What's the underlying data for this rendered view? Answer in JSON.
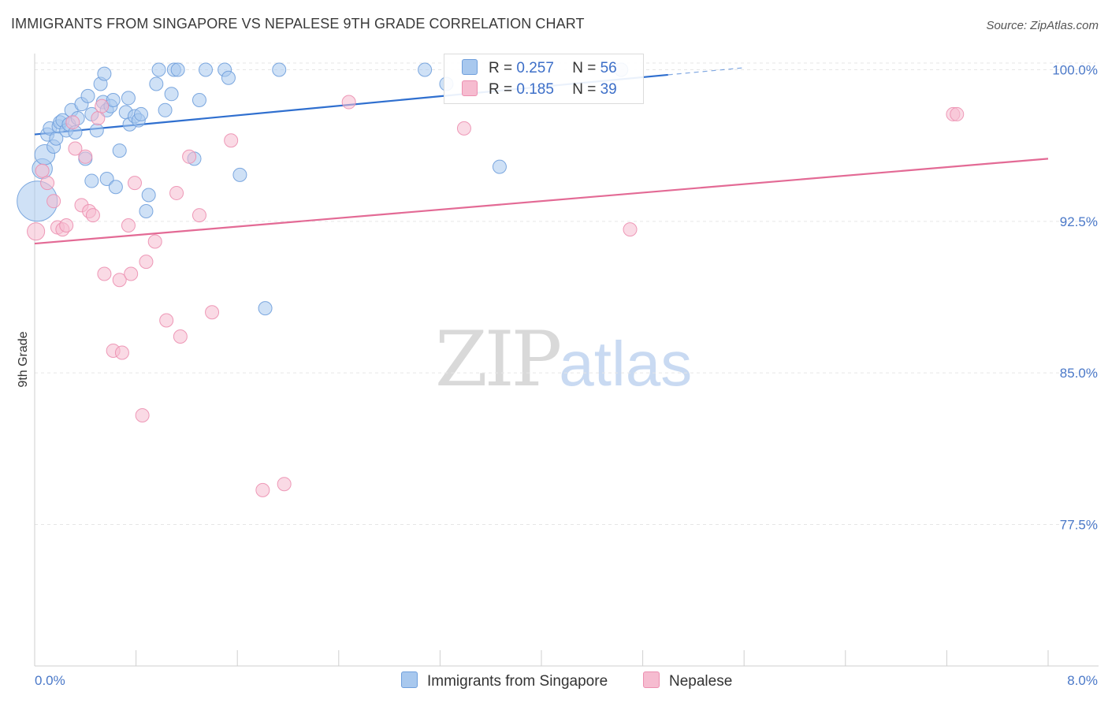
{
  "title": "IMMIGRANTS FROM SINGAPORE VS NEPALESE 9TH GRADE CORRELATION CHART",
  "source": "Source: ZipAtlas.com",
  "watermark": {
    "zip": "ZIP",
    "atlas": "atlas"
  },
  "legend": {
    "rows": [
      {
        "r_label": "R =",
        "r_value": "0.257",
        "n_label": "N =",
        "n_value": "56"
      },
      {
        "r_label": "R =",
        "r_value": "0.185",
        "n_label": "N =",
        "n_value": "39"
      }
    ]
  },
  "bottom_legend": [
    {
      "label": "Immigrants from Singapore"
    },
    {
      "label": "Nepalese"
    }
  ],
  "colors": {
    "blue_fill": "#a8c8ee",
    "blue_stroke": "#6f9fdc",
    "blue_line": "#2f6fcf",
    "pink_fill": "#f6bcd0",
    "pink_stroke": "#ec8fb0",
    "pink_line": "#e36a95",
    "grid": "#e6e6e6",
    "tick_text": "#4a78c8"
  },
  "chart_data": {
    "type": "scatter",
    "title": "IMMIGRANTS FROM SINGAPORE VS NEPALESE 9TH GRADE CORRELATION CHART",
    "xlabel": "",
    "ylabel": "9th Grade",
    "xlim": [
      0,
      8
    ],
    "ylim": [
      70.5,
      100.8
    ],
    "x_tick_labels": [
      "0.0%",
      "8.0%"
    ],
    "y_ticks": [
      77.5,
      85.0,
      92.5,
      100.0
    ],
    "y_tick_labels": [
      "77.5%",
      "85.0%",
      "92.5%",
      "100.0%"
    ],
    "grid": true,
    "series": [
      {
        "name": "Immigrants from Singapore",
        "color": "blue",
        "R": 0.257,
        "N": 56,
        "trend": {
          "x0": 0.0,
          "y0": 96.8,
          "x1": 5.0,
          "y1": 99.75,
          "dash_x1": 5.6,
          "dash_y1": 100.1
        },
        "points": [
          {
            "x": 0.02,
            "y": 93.5,
            "s": 3
          },
          {
            "x": 0.06,
            "y": 95.1,
            "s": 1.5
          },
          {
            "x": 0.08,
            "y": 95.8,
            "s": 1.5
          },
          {
            "x": 0.1,
            "y": 96.8,
            "s": 1
          },
          {
            "x": 0.12,
            "y": 97.1,
            "s": 1
          },
          {
            "x": 0.15,
            "y": 96.2,
            "s": 1
          },
          {
            "x": 0.17,
            "y": 96.6,
            "s": 1
          },
          {
            "x": 0.19,
            "y": 97.2,
            "s": 1
          },
          {
            "x": 0.2,
            "y": 97.4,
            "s": 1
          },
          {
            "x": 0.22,
            "y": 97.5,
            "s": 1
          },
          {
            "x": 0.25,
            "y": 97.0,
            "s": 1
          },
          {
            "x": 0.27,
            "y": 97.3,
            "s": 1
          },
          {
            "x": 0.29,
            "y": 98.0,
            "s": 1
          },
          {
            "x": 0.32,
            "y": 96.9,
            "s": 1
          },
          {
            "x": 0.34,
            "y": 97.6,
            "s": 1
          },
          {
            "x": 0.37,
            "y": 98.3,
            "s": 1
          },
          {
            "x": 0.4,
            "y": 95.6,
            "s": 1
          },
          {
            "x": 0.42,
            "y": 98.7,
            "s": 1
          },
          {
            "x": 0.45,
            "y": 97.8,
            "s": 1
          },
          {
            "x": 0.45,
            "y": 94.5,
            "s": 1
          },
          {
            "x": 0.49,
            "y": 97.0,
            "s": 1
          },
          {
            "x": 0.52,
            "y": 99.3,
            "s": 1
          },
          {
            "x": 0.54,
            "y": 98.4,
            "s": 1
          },
          {
            "x": 0.55,
            "y": 99.8,
            "s": 1
          },
          {
            "x": 0.57,
            "y": 98.0,
            "s": 1
          },
          {
            "x": 0.57,
            "y": 94.6,
            "s": 1
          },
          {
            "x": 0.6,
            "y": 98.2,
            "s": 1
          },
          {
            "x": 0.62,
            "y": 98.5,
            "s": 1
          },
          {
            "x": 0.64,
            "y": 94.2,
            "s": 1
          },
          {
            "x": 0.67,
            "y": 96.0,
            "s": 1
          },
          {
            "x": 0.72,
            "y": 97.9,
            "s": 1
          },
          {
            "x": 0.74,
            "y": 98.6,
            "s": 1
          },
          {
            "x": 0.75,
            "y": 97.3,
            "s": 1
          },
          {
            "x": 0.79,
            "y": 97.7,
            "s": 1
          },
          {
            "x": 0.82,
            "y": 97.5,
            "s": 1
          },
          {
            "x": 0.84,
            "y": 97.8,
            "s": 1
          },
          {
            "x": 0.88,
            "y": 93.0,
            "s": 1
          },
          {
            "x": 0.9,
            "y": 93.8,
            "s": 1
          },
          {
            "x": 0.96,
            "y": 99.3,
            "s": 1
          },
          {
            "x": 0.98,
            "y": 100.0,
            "s": 1
          },
          {
            "x": 1.03,
            "y": 98.0,
            "s": 1
          },
          {
            "x": 1.08,
            "y": 98.8,
            "s": 1
          },
          {
            "x": 1.1,
            "y": 100.0,
            "s": 1
          },
          {
            "x": 1.13,
            "y": 100.0,
            "s": 1
          },
          {
            "x": 1.26,
            "y": 95.6,
            "s": 1
          },
          {
            "x": 1.3,
            "y": 98.5,
            "s": 1
          },
          {
            "x": 1.35,
            "y": 100.0,
            "s": 1
          },
          {
            "x": 1.5,
            "y": 100.0,
            "s": 1
          },
          {
            "x": 1.53,
            "y": 99.6,
            "s": 1
          },
          {
            "x": 1.62,
            "y": 94.8,
            "s": 1
          },
          {
            "x": 1.82,
            "y": 88.2,
            "s": 1
          },
          {
            "x": 1.93,
            "y": 100.0,
            "s": 1
          },
          {
            "x": 3.08,
            "y": 100.0,
            "s": 1
          },
          {
            "x": 3.25,
            "y": 99.3,
            "s": 1
          },
          {
            "x": 3.67,
            "y": 95.2,
            "s": 1
          },
          {
            "x": 4.63,
            "y": 100.0,
            "s": 1
          }
        ]
      },
      {
        "name": "Nepalese",
        "color": "pink",
        "R": 0.185,
        "N": 39,
        "trend": {
          "x0": 0.0,
          "y0": 91.4,
          "x1": 8.0,
          "y1": 95.6
        },
        "points": [
          {
            "x": 0.01,
            "y": 92.0,
            "s": 1.3
          },
          {
            "x": 0.06,
            "y": 95.0,
            "s": 1
          },
          {
            "x": 0.1,
            "y": 94.4,
            "s": 1
          },
          {
            "x": 0.15,
            "y": 93.5,
            "s": 1
          },
          {
            "x": 0.18,
            "y": 92.2,
            "s": 1
          },
          {
            "x": 0.22,
            "y": 92.1,
            "s": 1
          },
          {
            "x": 0.25,
            "y": 92.3,
            "s": 1
          },
          {
            "x": 0.3,
            "y": 97.4,
            "s": 1
          },
          {
            "x": 0.32,
            "y": 96.1,
            "s": 1
          },
          {
            "x": 0.37,
            "y": 93.3,
            "s": 1
          },
          {
            "x": 0.4,
            "y": 95.7,
            "s": 1
          },
          {
            "x": 0.43,
            "y": 93.0,
            "s": 1
          },
          {
            "x": 0.46,
            "y": 92.8,
            "s": 1
          },
          {
            "x": 0.5,
            "y": 97.6,
            "s": 1
          },
          {
            "x": 0.53,
            "y": 98.2,
            "s": 1
          },
          {
            "x": 0.55,
            "y": 89.9,
            "s": 1
          },
          {
            "x": 0.62,
            "y": 86.1,
            "s": 1
          },
          {
            "x": 0.67,
            "y": 89.6,
            "s": 1
          },
          {
            "x": 0.69,
            "y": 86.0,
            "s": 1
          },
          {
            "x": 0.74,
            "y": 92.3,
            "s": 1
          },
          {
            "x": 0.76,
            "y": 89.9,
            "s": 1
          },
          {
            "x": 0.79,
            "y": 94.4,
            "s": 1
          },
          {
            "x": 0.85,
            "y": 82.9,
            "s": 1
          },
          {
            "x": 0.88,
            "y": 90.5,
            "s": 1
          },
          {
            "x": 0.95,
            "y": 91.5,
            "s": 1
          },
          {
            "x": 1.04,
            "y": 87.6,
            "s": 1
          },
          {
            "x": 1.12,
            "y": 93.9,
            "s": 1
          },
          {
            "x": 1.15,
            "y": 86.8,
            "s": 1
          },
          {
            "x": 1.22,
            "y": 95.7,
            "s": 1
          },
          {
            "x": 1.3,
            "y": 92.8,
            "s": 1
          },
          {
            "x": 1.4,
            "y": 88.0,
            "s": 1
          },
          {
            "x": 1.55,
            "y": 96.5,
            "s": 1
          },
          {
            "x": 1.8,
            "y": 79.2,
            "s": 1
          },
          {
            "x": 1.97,
            "y": 79.5,
            "s": 1
          },
          {
            "x": 2.48,
            "y": 98.4,
            "s": 1
          },
          {
            "x": 3.39,
            "y": 97.1,
            "s": 1
          },
          {
            "x": 4.7,
            "y": 92.1,
            "s": 1
          },
          {
            "x": 7.25,
            "y": 97.8,
            "s": 1
          },
          {
            "x": 7.28,
            "y": 97.8,
            "s": 1
          }
        ]
      }
    ]
  }
}
